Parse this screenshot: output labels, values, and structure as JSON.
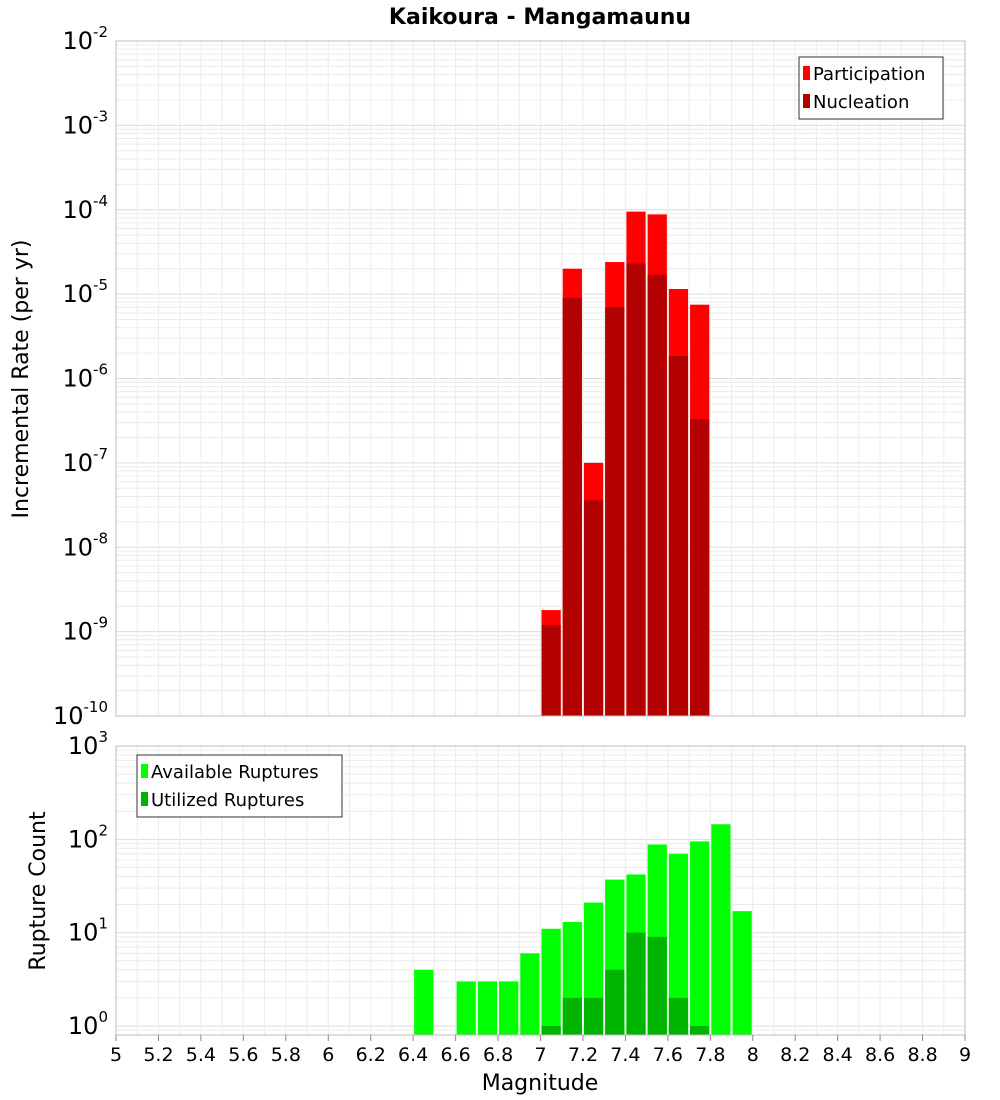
{
  "chart_data": {
    "type": "bar",
    "title": "Kaikoura - Mangamaunu",
    "xlabel": "Magnitude",
    "xlim": [
      5,
      9
    ],
    "x_ticks": [
      "5",
      "5.2",
      "5.4",
      "5.6",
      "5.8",
      "6",
      "6.2",
      "6.4",
      "6.6",
      "6.8",
      "7",
      "7.2",
      "7.4",
      "7.6",
      "7.8",
      "8",
      "8.2",
      "8.4",
      "8.6",
      "8.8",
      "9"
    ],
    "bin_width": 0.1,
    "grid": true,
    "panels": [
      {
        "name": "rate",
        "ylabel": "Incremental Rate (per yr)",
        "yscale": "log",
        "ylim": [
          1e-10,
          0.01
        ],
        "y_tick_labels": [
          {
            "base": "10",
            "exp": "-2"
          },
          {
            "base": "10",
            "exp": "-3"
          },
          {
            "base": "10",
            "exp": "-4"
          },
          {
            "base": "10",
            "exp": "-5"
          },
          {
            "base": "10",
            "exp": "-6"
          },
          {
            "base": "10",
            "exp": "-7"
          },
          {
            "base": "10",
            "exp": "-8"
          },
          {
            "base": "10",
            "exp": "-9"
          },
          {
            "base": "10",
            "exp": "-10"
          }
        ],
        "legend_position": "top-right",
        "series": [
          {
            "name": "Participation",
            "color": "#ff0000",
            "x": [
              7.05,
              7.15,
              7.25,
              7.35,
              7.45,
              7.55,
              7.65,
              7.75
            ],
            "values": [
              1.8e-09,
              2e-05,
              1e-07,
              2.4e-05,
              9.5e-05,
              8.8e-05,
              1.15e-05,
              7.5e-06
            ]
          },
          {
            "name": "Nucleation",
            "color": "#b30000",
            "x": [
              7.05,
              7.15,
              7.25,
              7.35,
              7.45,
              7.55,
              7.65,
              7.75
            ],
            "values": [
              1.2e-09,
              9e-06,
              3.6e-08,
              7e-06,
              2.3e-05,
              1.7e-05,
              1.85e-06,
              3.3e-07
            ]
          }
        ]
      },
      {
        "name": "count",
        "ylabel": "Rupture Count",
        "yscale": "log",
        "ylim": [
          0.8,
          1000
        ],
        "y_tick_labels": [
          {
            "base": "10",
            "exp": "3"
          },
          {
            "base": "10",
            "exp": "2"
          },
          {
            "base": "10",
            "exp": "1"
          },
          {
            "base": "10",
            "exp": "0"
          }
        ],
        "legend_position": "top-left",
        "series": [
          {
            "name": "Available Ruptures",
            "color": "#00ff00",
            "x": [
              6.45,
              6.65,
              6.75,
              6.85,
              6.95,
              7.05,
              7.15,
              7.25,
              7.35,
              7.45,
              7.55,
              7.65,
              7.75,
              7.85,
              7.95
            ],
            "values": [
              4,
              3,
              3,
              3,
              6,
              11,
              13,
              21,
              37,
              42,
              88,
              70,
              95,
              145,
              17
            ]
          },
          {
            "name": "Utilized Ruptures",
            "color": "#00b300",
            "x": [
              7.05,
              7.15,
              7.25,
              7.35,
              7.45,
              7.55,
              7.65,
              7.75
            ],
            "values": [
              1,
              2,
              2,
              4,
              10,
              9,
              2,
              1
            ]
          }
        ]
      }
    ]
  }
}
